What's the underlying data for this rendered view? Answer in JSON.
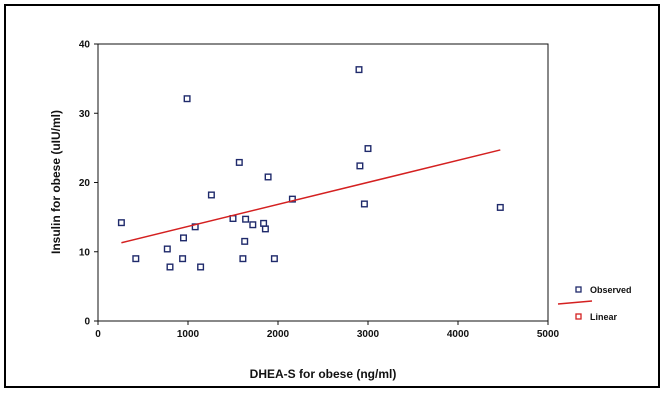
{
  "chart_data": {
    "type": "scatter",
    "xlabel": "DHEA-S for obese (ng/ml)",
    "ylabel": "Insulin for obese (uIU/ml)",
    "xlim": [
      0,
      5000
    ],
    "ylim": [
      0,
      40
    ],
    "xticks": [
      "0",
      "1000",
      "2000",
      "3000",
      "4000",
      "5000"
    ],
    "yticks": [
      "0",
      "10",
      "20",
      "30",
      "40"
    ],
    "grid": false,
    "legend_position": "right",
    "series": [
      {
        "name": "Observed",
        "color": "#1f2a6b",
        "marker": "square",
        "points": [
          {
            "x": 260,
            "y": 14.2
          },
          {
            "x": 420,
            "y": 9.0
          },
          {
            "x": 770,
            "y": 10.4
          },
          {
            "x": 800,
            "y": 7.8
          },
          {
            "x": 940,
            "y": 9.0
          },
          {
            "x": 950,
            "y": 12.0
          },
          {
            "x": 990,
            "y": 32.1
          },
          {
            "x": 1080,
            "y": 13.6
          },
          {
            "x": 1140,
            "y": 7.8
          },
          {
            "x": 1260,
            "y": 18.2
          },
          {
            "x": 1500,
            "y": 14.8
          },
          {
            "x": 1570,
            "y": 22.9
          },
          {
            "x": 1610,
            "y": 9.0
          },
          {
            "x": 1630,
            "y": 11.5
          },
          {
            "x": 1640,
            "y": 14.7
          },
          {
            "x": 1720,
            "y": 13.9
          },
          {
            "x": 1840,
            "y": 14.1
          },
          {
            "x": 1860,
            "y": 13.3
          },
          {
            "x": 1890,
            "y": 20.8
          },
          {
            "x": 1960,
            "y": 9.0
          },
          {
            "x": 2160,
            "y": 17.6
          },
          {
            "x": 2900,
            "y": 36.3
          },
          {
            "x": 2910,
            "y": 22.4
          },
          {
            "x": 2960,
            "y": 16.9
          },
          {
            "x": 3000,
            "y": 24.9
          },
          {
            "x": 4470,
            "y": 16.4
          }
        ]
      },
      {
        "name": "Linear",
        "color": "#d42020",
        "line": [
          {
            "x": 260,
            "y": 11.3
          },
          {
            "x": 4470,
            "y": 24.7
          }
        ]
      }
    ]
  }
}
